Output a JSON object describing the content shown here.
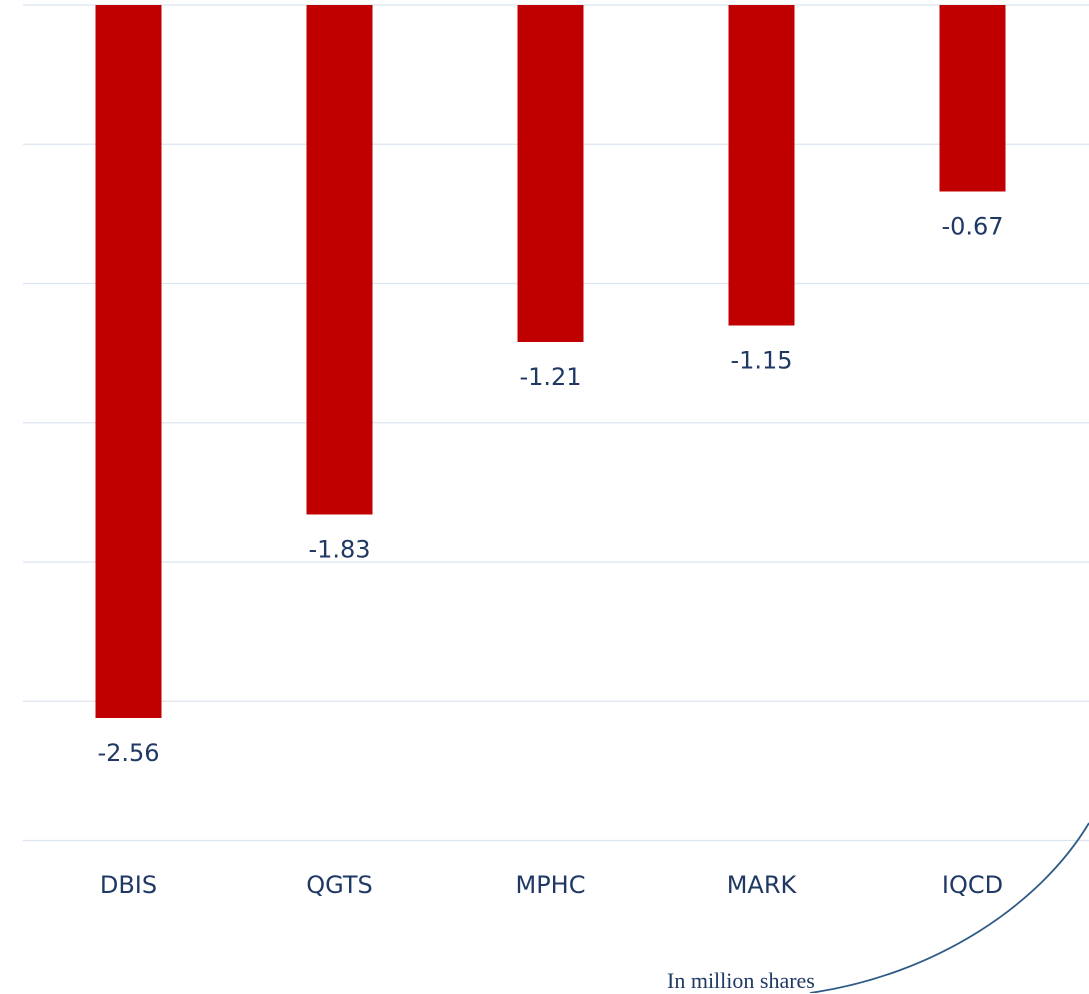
{
  "chart_data": {
    "type": "bar",
    "title": "",
    "xlabel": "",
    "ylabel": "",
    "categories": [
      "DBIS",
      "QGTS",
      "MPHC",
      "MARK",
      "IQCD"
    ],
    "values": [
      -2.56,
      -1.83,
      -1.21,
      -1.15,
      -0.67
    ],
    "data_labels": [
      "-2.56",
      "-1.83",
      "-1.21",
      "-1.15",
      "-0.67"
    ],
    "ylim": [
      -3,
      0
    ],
    "grid": true,
    "legend": "none",
    "note": "In million shares"
  },
  "colors": {
    "bar": "#c00000",
    "label_text": "#1f3864",
    "gridline": "#dbe5f1",
    "decoration": "#2e5a87"
  }
}
